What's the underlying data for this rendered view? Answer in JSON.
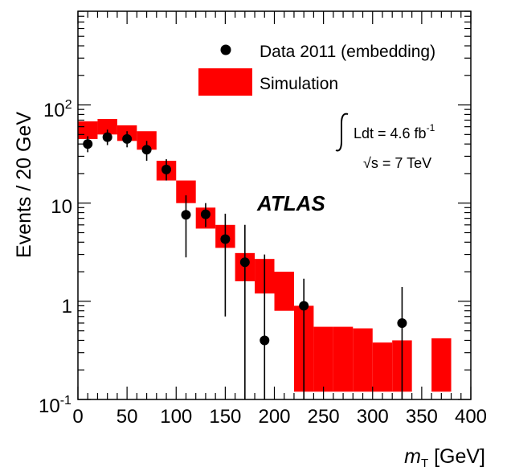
{
  "chart_data": {
    "type": "scatter",
    "xlabel_main": "m",
    "xlabel_sub": "T",
    "xlabel_unit": " [GeV]",
    "ylabel": "Events / 20 GeV",
    "xlim": [
      0,
      400
    ],
    "ylim": [
      0.1,
      900
    ],
    "y_scale": "log",
    "x_ticks": [
      "0",
      "50",
      "100",
      "150",
      "200",
      "250",
      "300",
      "350",
      "400"
    ],
    "y_tick_10": "10",
    "y_tick_1": "1",
    "y_tick_exp_base": "10",
    "y_tick_100_exp": "2",
    "y_tick_01_exp": "-1",
    "legend": {
      "data_label": "Data 2011 (embedding)",
      "sim_label": "Simulation"
    },
    "lumi_label": "Ldt = 4.6 fb",
    "lumi_exp": "-1",
    "sqrt_symbol": "√",
    "energy_label": "s = 7 TeV",
    "atlas_label": "ATLAS",
    "colors": {
      "simulation": "#ff0000",
      "data": "#000000"
    },
    "series": [
      {
        "name": "Simulation",
        "bin_width": 20,
        "bins": [
          {
            "x0": 0,
            "lo": 45,
            "hi": 68
          },
          {
            "x0": 20,
            "lo": 50,
            "hi": 72
          },
          {
            "x0": 40,
            "lo": 43,
            "hi": 62
          },
          {
            "x0": 60,
            "lo": 35,
            "hi": 54
          },
          {
            "x0": 80,
            "lo": 17,
            "hi": 27
          },
          {
            "x0": 100,
            "lo": 10,
            "hi": 17
          },
          {
            "x0": 120,
            "lo": 5.5,
            "hi": 9
          },
          {
            "x0": 140,
            "lo": 3.5,
            "hi": 6
          },
          {
            "x0": 160,
            "lo": 1.6,
            "hi": 3.1
          },
          {
            "x0": 180,
            "lo": 1.2,
            "hi": 2.7
          },
          {
            "x0": 200,
            "lo": 0.8,
            "hi": 2.0
          },
          {
            "x0": 220,
            "lo": 0.12,
            "hi": 0.9
          },
          {
            "x0": 240,
            "lo": 0.12,
            "hi": 0.55
          },
          {
            "x0": 260,
            "lo": 0.12,
            "hi": 0.55
          },
          {
            "x0": 280,
            "lo": 0.12,
            "hi": 0.53
          },
          {
            "x0": 300,
            "lo": 0.12,
            "hi": 0.38
          },
          {
            "x0": 320,
            "lo": 0.12,
            "hi": 0.4
          },
          {
            "x0": 360,
            "lo": 0.12,
            "hi": 0.42
          }
        ]
      },
      {
        "name": "Data 2011 (embedding)",
        "points": [
          {
            "x": 10,
            "y": 40,
            "lo": 33,
            "hi": 48
          },
          {
            "x": 30,
            "y": 47,
            "lo": 39,
            "hi": 56
          },
          {
            "x": 50,
            "y": 45,
            "lo": 37,
            "hi": 54
          },
          {
            "x": 70,
            "y": 35,
            "lo": 27,
            "hi": 43
          },
          {
            "x": 90,
            "y": 22,
            "lo": 17,
            "hi": 28
          },
          {
            "x": 110,
            "y": 7.6,
            "lo": 2.8,
            "hi": 12
          },
          {
            "x": 130,
            "y": 7.7,
            "lo": 5.7,
            "hi": 10
          },
          {
            "x": 150,
            "y": 4.3,
            "lo": 0.7,
            "hi": 7.8
          },
          {
            "x": 170,
            "y": 2.5,
            "lo": 0.1,
            "hi": 6
          },
          {
            "x": 190,
            "y": 0.4,
            "lo": 0.1,
            "hi": 3
          },
          {
            "x": 230,
            "y": 0.9,
            "lo": 0.1,
            "hi": 1.7
          },
          {
            "x": 330,
            "y": 0.6,
            "lo": 0.1,
            "hi": 1.4
          }
        ]
      }
    ]
  }
}
